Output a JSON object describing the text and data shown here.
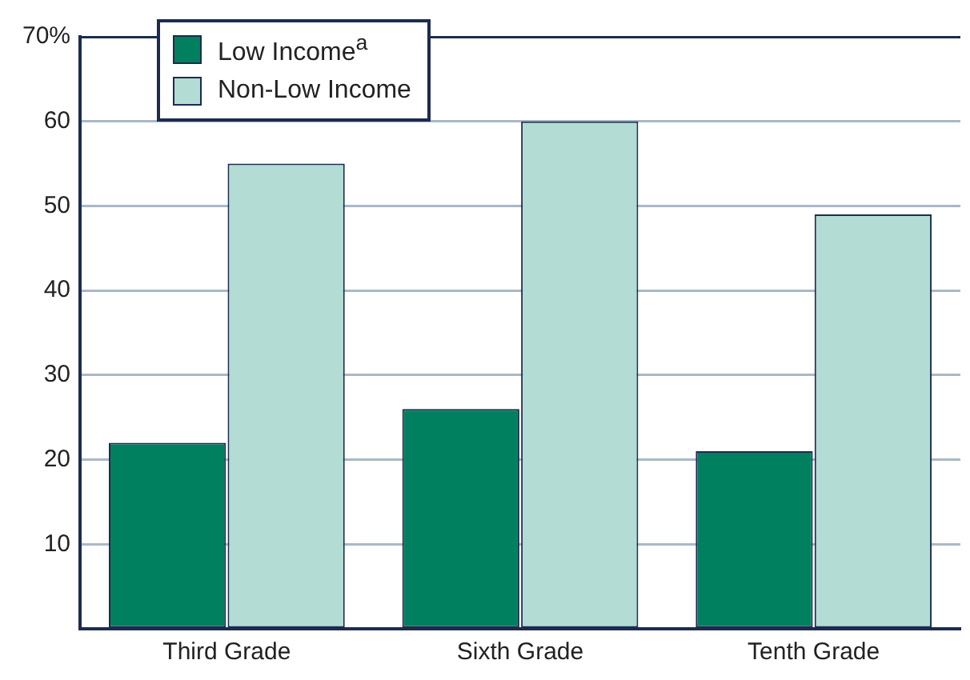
{
  "chart_data": {
    "type": "bar",
    "categories": [
      "Third Grade",
      "Sixth Grade",
      "Tenth Grade"
    ],
    "series": [
      {
        "name": "Low Income$^{a}$",
        "color": "#00805f",
        "values": [
          22,
          26,
          21
        ]
      },
      {
        "name": "Non-Low Income",
        "color": "#b2dcd4",
        "values": [
          55,
          60,
          49
        ]
      }
    ],
    "ylim": [
      0,
      70
    ],
    "yticks": [
      {
        "value": 0,
        "label": null
      },
      10,
      20,
      30,
      40,
      50,
      60,
      {
        "value": 70,
        "label": "70%"
      }
    ],
    "grid": "y",
    "legend": "top left"
  }
}
